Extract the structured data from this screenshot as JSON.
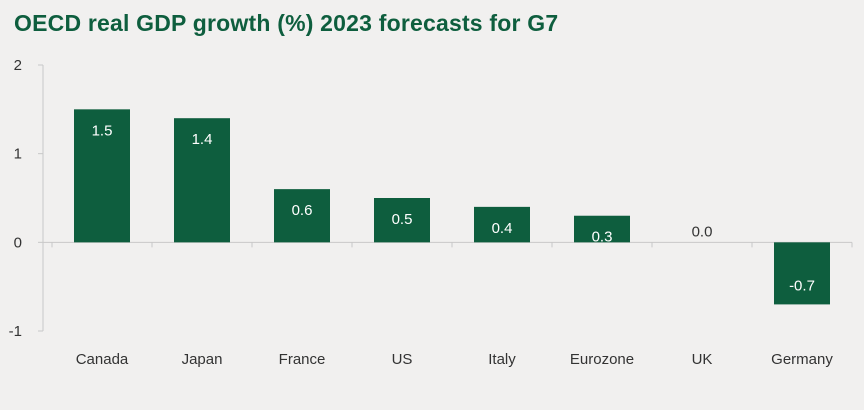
{
  "chart_data": {
    "type": "bar",
    "title": "OECD real GDP growth (%) 2023 forecasts for G7",
    "categories": [
      "Canada",
      "Japan",
      "France",
      "US",
      "Italy",
      "Eurozone",
      "UK",
      "Germany"
    ],
    "values": [
      1.5,
      1.4,
      0.6,
      0.5,
      0.4,
      0.3,
      0.0,
      -0.7
    ],
    "data_labels": [
      "1.5",
      "1.4",
      "0.6",
      "0.5",
      "0.4",
      "0.3",
      "0.0",
      "-0.7"
    ],
    "ylim": [
      -1,
      2
    ],
    "yticks": [
      2,
      1,
      0,
      -1
    ],
    "ytick_labels": [
      "2",
      "1",
      "0",
      "-1"
    ],
    "xlabel": "",
    "ylabel": "",
    "grid": false,
    "bar_color": "#0e5e3e",
    "label_color_inside": "#ffffff",
    "label_color_zero": "#333333"
  }
}
